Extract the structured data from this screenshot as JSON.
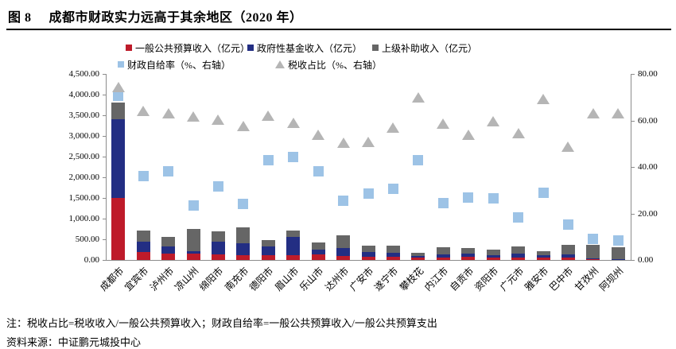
{
  "figure": {
    "label": "图 8",
    "title": "成都市财政实力远高于其余地区（2020 年）"
  },
  "notes": {
    "definition": "注：税收占比=税收收入/一般公共预算收入；财政自给率=一般公共预算收入/一般公共预算支出",
    "source": "资料来源：中证鹏元城投中心"
  },
  "colors": {
    "budget_revenue": "#be1b2a",
    "gov_fund_revenue": "#232e83",
    "superior_subsidy": "#666666",
    "self_sufficiency": "#9dc3e6",
    "tax_share": "#b5b5b5",
    "axis": "#8c8c8c"
  },
  "chart_data": {
    "type": "bar",
    "subtype": "stacked-bars-with-right-axis-scatter-overlay",
    "title": "成都市财政实力远高于其余地区（2020 年）",
    "grid": false,
    "legend_position": "top",
    "categories": [
      "成都市",
      "宜宾市",
      "泸州市",
      "凉山州",
      "绵阳市",
      "南充市",
      "德阳市",
      "眉山市",
      "乐山市",
      "达州市",
      "广安市",
      "遂宁市",
      "攀枝花",
      "内江市",
      "自贡市",
      "资阳市",
      "广元市",
      "雅安市",
      "巴中市",
      "甘孜州",
      "阿坝州"
    ],
    "bar_series": [
      {
        "name": "一般公共预算收入（亿元）",
        "axis": "left",
        "color": "#be1b2a",
        "values": [
          1500,
          185,
          145,
          155,
          130,
          110,
          110,
          110,
          143,
          100,
          80,
          80,
          60,
          67,
          80,
          55,
          60,
          55,
          55,
          20,
          15
        ]
      },
      {
        "name": "政府性基金收入（亿元）",
        "axis": "left",
        "color": "#232e83",
        "values": [
          1905,
          260,
          180,
          65,
          305,
          290,
          225,
          440,
          100,
          185,
          110,
          90,
          30,
          77,
          65,
          63,
          85,
          56,
          75,
          25,
          10
        ]
      },
      {
        "name": "上级补助收入（亿元）",
        "axis": "left",
        "color": "#666666",
        "values": [
          410,
          275,
          240,
          535,
          255,
          395,
          155,
          168,
          175,
          305,
          160,
          180,
          80,
          166,
          150,
          127,
          190,
          96,
          230,
          330,
          285
        ]
      }
    ],
    "scatter_series": [
      {
        "name": "财政自给率（%、右轴）",
        "axis": "right",
        "marker": "square",
        "color": "#9dc3e6",
        "values": [
          70.5,
          36.0,
          38.0,
          23.5,
          31.5,
          24.0,
          43.0,
          44.3,
          38.0,
          25.5,
          28.5,
          30.5,
          42.8,
          24.5,
          27.0,
          26.5,
          18.2,
          29.0,
          15.3,
          9.0,
          8.3
        ]
      },
      {
        "name": "税收占比（%、右轴）",
        "axis": "right",
        "marker": "triangle",
        "color": "#b5b5b5",
        "values": [
          74.5,
          64.0,
          63.2,
          61.8,
          60.5,
          57.6,
          62.1,
          59.0,
          54.0,
          50.5,
          50.8,
          57.0,
          70.0,
          58.6,
          54.0,
          59.8,
          54.5,
          69.2,
          48.8,
          63.0,
          63.0
        ]
      }
    ],
    "left_axis": {
      "min": 0,
      "max": 4500,
      "step": 500,
      "tick_labels": [
        "4,500.00",
        "4,000.00",
        "3,500.00",
        "3,000.00",
        "2,500.00",
        "2,000.00",
        "1,500.00",
        "1,000.00",
        "500.00",
        "0.00"
      ]
    },
    "right_axis": {
      "min": 0,
      "max": 80,
      "step": 20,
      "tick_labels": [
        "80.00",
        "60.00",
        "40.00",
        "20.00",
        "0.00"
      ]
    }
  }
}
